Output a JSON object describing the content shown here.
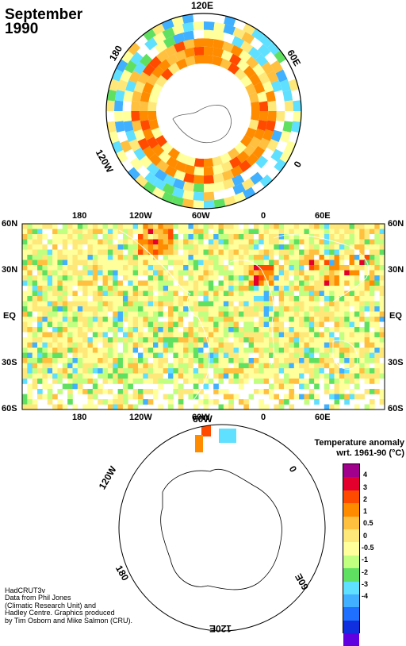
{
  "title": {
    "month": "September",
    "year": "1990"
  },
  "north_polar": {
    "labels": {
      "top": "120E",
      "right": "60E",
      "left": "180",
      "lower_left": "120W",
      "lower_right": "0"
    }
  },
  "world_map": {
    "left_lat": [
      "60N",
      "30N",
      "EQ",
      "30S",
      "60S"
    ],
    "right_lat": [
      "60N",
      "30N",
      "EQ",
      "30S",
      "60S"
    ],
    "top_lon": [
      "180",
      "120W",
      "60W",
      "0",
      "60E"
    ],
    "bottom_lon": [
      "180",
      "120W",
      "60W",
      "0",
      "60E"
    ]
  },
  "south_polar": {
    "labels": {
      "top": "60W",
      "upper_left": "120W",
      "upper_right": "0",
      "lower_left": "180",
      "lower_right": "60E",
      "bottom": "120E"
    }
  },
  "legend": {
    "title_line1": "Temperature anomaly",
    "title_line2": "wrt. 1961-90  (°C)",
    "colors": [
      "#a0008c",
      "#e4002c",
      "#ff4a00",
      "#ff8c00",
      "#ffc040",
      "#ffe87a",
      "#ffff9c",
      "#c0ff80",
      "#60e060",
      "#60e0ff",
      "#40b0ff",
      "#2070ff",
      "#1030e0",
      "#6000e0"
    ],
    "values": [
      "4",
      "3",
      "2",
      "1",
      "0.5",
      "0",
      "-0.5",
      "-1",
      "-2",
      "-3",
      "-4"
    ]
  },
  "credit": {
    "line1": "HadCRUT3v",
    "line2": "Data from Phil Jones",
    "line3": "(Climatic Research Unit) and",
    "line4": "Hadley Centre.  Graphics produced",
    "line5": "by Tim Osborn and Mike Salmon (CRU)."
  }
}
